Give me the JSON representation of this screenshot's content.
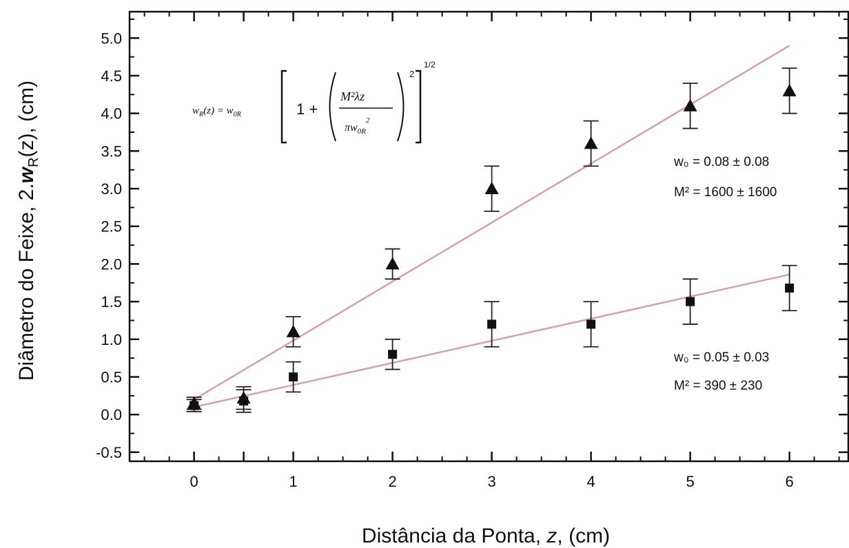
{
  "chart_data": {
    "type": "scatter",
    "xlabel": "Distância da Ponta, z, (cm)",
    "xlabel_parts": [
      "Distância da Ponta, ",
      "z",
      ", (cm)"
    ],
    "ylabel": "Diâmetro do Feixe, 2.w_R(z), (cm)",
    "ylabel_parts": {
      "pre": "Diâmetro do Feixe, 2.",
      "italic": "w",
      "sub": "R",
      "post": "(z), (cm)"
    },
    "xlim": [
      -0.65,
      6.6
    ],
    "ylim": [
      -0.62,
      5.35
    ],
    "x_ticks": [
      0,
      0.5,
      1,
      2,
      3,
      4,
      5,
      6
    ],
    "x_tick_labels": [
      "0",
      "1",
      "2",
      "3",
      "4",
      "5",
      "6"
    ],
    "x_tick_label_values": [
      0,
      1,
      2,
      3,
      4,
      5,
      6
    ],
    "y_ticks": [
      -0.5,
      0.0,
      0.5,
      1.0,
      1.5,
      2.0,
      2.5,
      3.0,
      3.5,
      4.0,
      4.5,
      5.0
    ],
    "y_tick_labels": [
      "-0.5",
      "0.0",
      "0.5",
      "1.0",
      "1.5",
      "2.0",
      "2.5",
      "3.0",
      "3.5",
      "4.0",
      "4.5",
      "5.0"
    ],
    "grid": false,
    "series": [
      {
        "marker": "triangle",
        "x": [
          0,
          0.5,
          1,
          2,
          3,
          4,
          5,
          6
        ],
        "y": [
          0.15,
          0.22,
          1.1,
          2.0,
          3.0,
          3.6,
          4.1,
          4.3
        ],
        "error": [
          0.08,
          0.15,
          0.2,
          0.2,
          0.3,
          0.3,
          0.3,
          0.3
        ],
        "fit": {
          "x": [
            0,
            6
          ],
          "y": [
            0.2,
            4.9
          ],
          "color": "#d9a0a6"
        }
      },
      {
        "marker": "square",
        "x": [
          0,
          0.5,
          1,
          2,
          3,
          4,
          5,
          6
        ],
        "y": [
          0.12,
          0.18,
          0.5,
          0.8,
          1.2,
          1.2,
          1.5,
          1.68
        ],
        "error": [
          0.08,
          0.15,
          0.2,
          0.2,
          0.3,
          0.3,
          0.3,
          0.3
        ],
        "fit": {
          "x": [
            0,
            6
          ],
          "y": [
            0.1,
            1.86
          ],
          "color": "#d9a0a6"
        }
      }
    ],
    "annotations": [
      {
        "id": "fit-upper-w0",
        "text": "w₀ = 0.08 ± 0.08"
      },
      {
        "id": "fit-upper-m2",
        "text": "M² = 1600 ± 1600"
      },
      {
        "id": "fit-lower-w0",
        "text": "w₀ = 0.05 ± 0.03"
      },
      {
        "id": "fit-lower-m2",
        "text": "M² = 390 ± 230"
      }
    ],
    "formula": {
      "lhs": "w_R(z) = w_0R",
      "lhs_parts": [
        "w",
        "R",
        "(z) = w",
        "0R"
      ],
      "numerator": "M²λz",
      "denominator": "πw_0R²",
      "outer_exponent": "1/2"
    }
  }
}
